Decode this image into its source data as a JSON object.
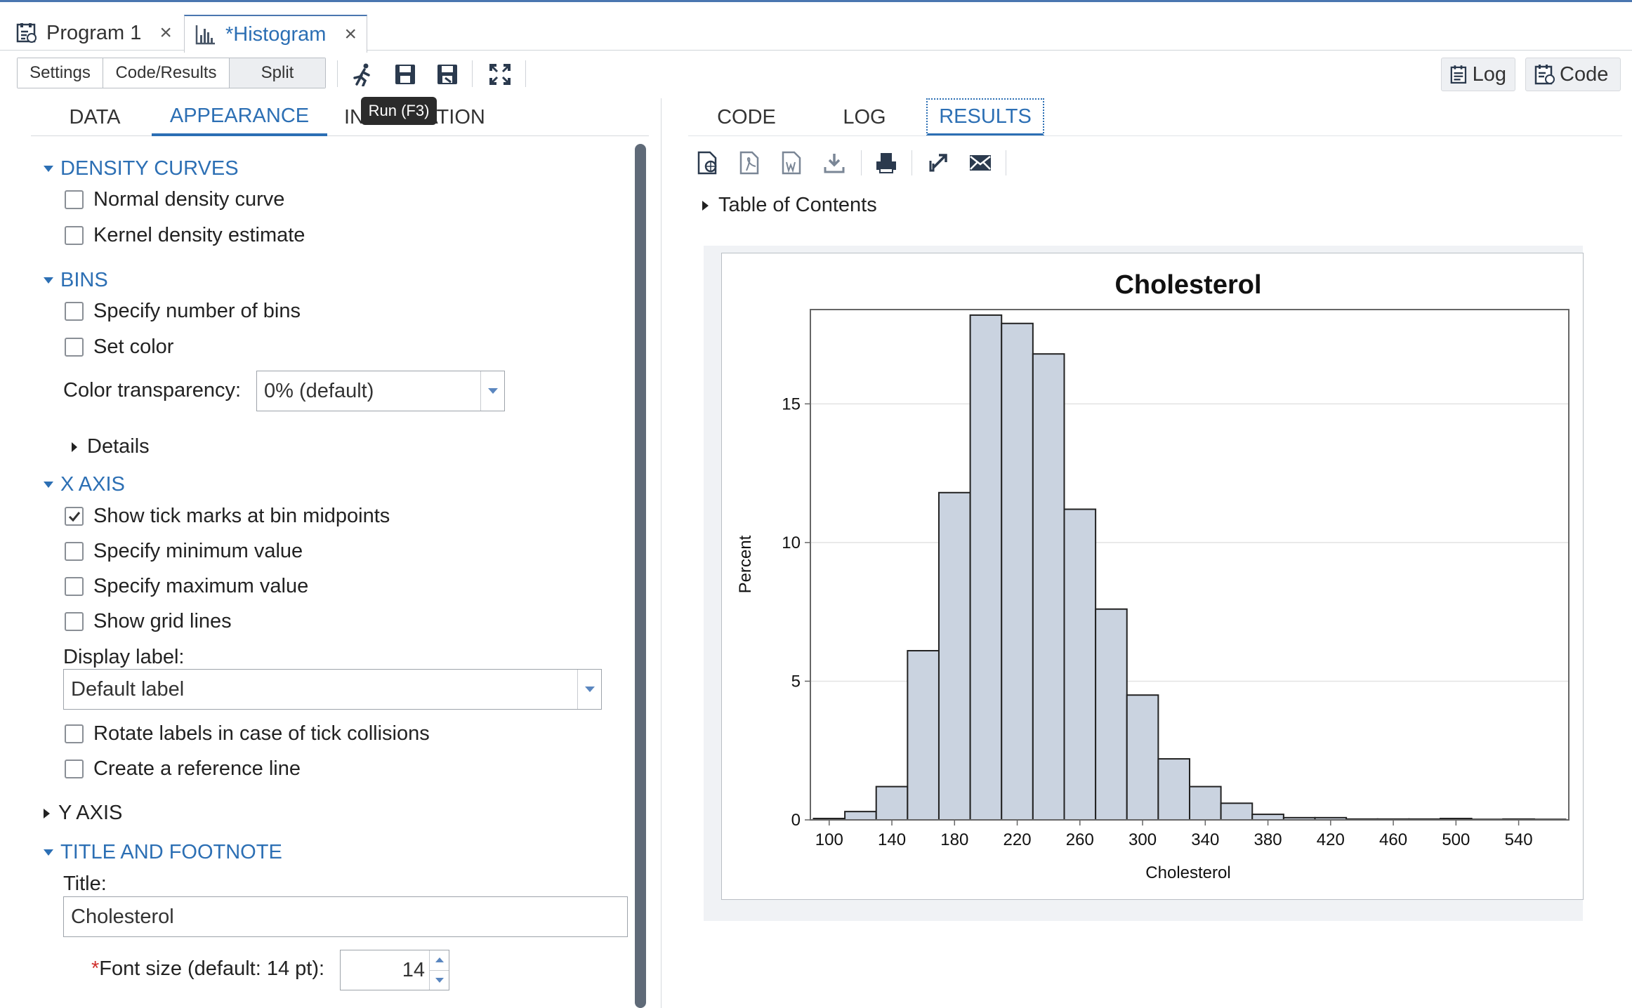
{
  "tabs": [
    {
      "label": "Program 1",
      "close": "×",
      "active": false
    },
    {
      "label": "*Histogram",
      "close": "×",
      "active": true
    }
  ],
  "toolbar": {
    "view_buttons": [
      "Settings",
      "Code/Results",
      "Split"
    ],
    "icons": [
      "run-icon",
      "save-icon",
      "save-as-icon",
      "maximize-icon"
    ],
    "log_label": "Log",
    "code_label": "Code",
    "tooltip": "Run (F3)"
  },
  "left": {
    "tabs": [
      "DATA",
      "APPEARANCE",
      "INFORMATION"
    ],
    "active_tab": "APPEARANCE",
    "density": {
      "title": "DENSITY CURVES",
      "items": [
        {
          "label": "Normal density curve",
          "checked": false
        },
        {
          "label": "Kernel density estimate",
          "checked": false
        }
      ]
    },
    "bins": {
      "title": "BINS",
      "items": [
        {
          "label": "Specify number of bins",
          "checked": false
        },
        {
          "label": "Set color",
          "checked": false
        }
      ],
      "transparency_label": "Color transparency:",
      "transparency_value": "0% (default)",
      "details_label": "Details"
    },
    "xaxis": {
      "title": "X AXIS",
      "items": [
        {
          "label": "Show tick marks at bin midpoints",
          "checked": true
        },
        {
          "label": "Specify minimum value",
          "checked": false
        },
        {
          "label": "Specify maximum value",
          "checked": false
        },
        {
          "label": "Show grid lines",
          "checked": false
        }
      ],
      "display_label_label": "Display label:",
      "display_label_value": "Default label",
      "items2": [
        {
          "label": "Rotate labels in case of tick collisions",
          "checked": false
        },
        {
          "label": "Create a reference line",
          "checked": false
        }
      ]
    },
    "yaxis": {
      "title": "Y AXIS"
    },
    "title_footnote": {
      "title": "TITLE AND FOOTNOTE",
      "title_label": "Title:",
      "title_value": "Cholesterol",
      "required_mark": "*",
      "font_size_label": "Font size (default: 14 pt):",
      "font_size_value": "14"
    }
  },
  "right": {
    "tabs": [
      "CODE",
      "LOG",
      "RESULTS"
    ],
    "active_tab": "RESULTS",
    "icons": [
      "html-icon",
      "pdf-icon",
      "word-icon",
      "download-icon",
      "print-icon",
      "expand-icon",
      "email-icon"
    ],
    "toc_label": "Table of Contents"
  },
  "colors": {
    "accent": "#2c6fb4",
    "bar_fill": "#cad3e0",
    "bar_stroke": "#222222"
  },
  "chart_data": {
    "type": "bar",
    "title": "Cholesterol",
    "xlabel": "Cholesterol",
    "ylabel": "Percent",
    "bin_width": 20,
    "bin_midpoints": [
      100,
      120,
      140,
      160,
      180,
      200,
      220,
      240,
      260,
      280,
      300,
      320,
      340,
      360,
      380,
      400,
      420,
      440,
      460,
      480,
      500,
      520,
      540,
      560
    ],
    "values": [
      0.05,
      0.3,
      1.2,
      6.1,
      11.8,
      18.2,
      17.9,
      16.8,
      11.2,
      7.6,
      4.5,
      2.2,
      1.2,
      0.6,
      0.2,
      0.08,
      0.08,
      0.03,
      0.03,
      0.03,
      0.05,
      0.02,
      0.03,
      0.02
    ],
    "xticks": [
      100,
      140,
      180,
      220,
      260,
      300,
      340,
      380,
      420,
      460,
      500,
      540
    ],
    "yticks": [
      0,
      5,
      10,
      15
    ],
    "xlim": [
      88,
      572
    ],
    "ylim": [
      0,
      18.4
    ],
    "grid": "horizontal"
  }
}
